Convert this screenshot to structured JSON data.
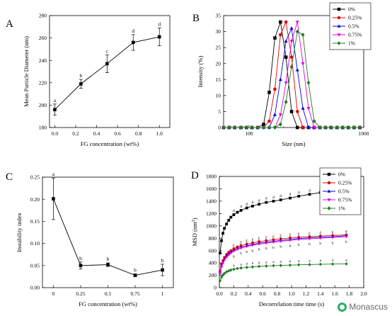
{
  "watermark": {
    "text": "Monascus",
    "icon": "wechat-icon"
  },
  "chart_data": [
    {
      "id": "A",
      "panel_label": "A",
      "type": "line",
      "xlabel": "FG concentration (wt%)",
      "ylabel": "Mean Particle Diameter (nm)",
      "xlim": [
        -0.05,
        1.1
      ],
      "ylim": [
        180,
        280
      ],
      "xticks": [
        0.0,
        0.2,
        0.4,
        0.6,
        0.8,
        1.0
      ],
      "xtick_labels": [
        "0.0",
        "0.2",
        "0.4",
        "0.6",
        "0.8",
        "1.0"
      ],
      "yticks": [
        180,
        200,
        220,
        240,
        260,
        280
      ],
      "ytick_labels": [
        "180",
        "200",
        "220",
        "240",
        "260",
        "280"
      ],
      "series": [
        {
          "x": [
            0,
            0.25,
            0.5,
            0.75,
            1.0
          ],
          "values": [
            196,
            219,
            237,
            256,
            261
          ],
          "errors": [
            5,
            4,
            8,
            7,
            8
          ],
          "labels": [
            "a",
            "b",
            "c",
            "d",
            "d"
          ],
          "marker": "square",
          "color": "#000000"
        }
      ]
    },
    {
      "id": "B",
      "panel_label": "B",
      "type": "line",
      "xlabel": "Size (nm)",
      "ylabel": "Intensity (%)",
      "xscale": "log",
      "xlim": [
        60,
        1000
      ],
      "ylim": [
        0,
        35
      ],
      "xticks": [
        100,
        1000
      ],
      "xtick_labels": [
        "100",
        "1000"
      ],
      "yticks": [
        0,
        5,
        10,
        15,
        20,
        25,
        30,
        35
      ],
      "ytick_labels": [
        "0",
        "5",
        "10",
        "15",
        "20",
        "25",
        "30",
        "35"
      ],
      "legend_position": "top-right",
      "x_common": [
        60,
        67,
        75,
        85,
        95,
        106,
        119,
        134,
        150,
        168,
        188,
        210,
        235,
        264,
        295,
        330,
        370,
        415,
        465,
        520,
        585,
        655,
        735,
        825,
        925
      ],
      "series": [
        {
          "name": "0%",
          "marker": "square",
          "color": "#000000",
          "values": [
            0,
            0,
            0,
            0,
            0,
            0,
            0,
            1,
            11,
            28,
            33,
            22,
            5,
            0,
            0,
            0,
            0,
            0,
            0,
            0,
            0,
            0,
            0,
            0,
            0
          ]
        },
        {
          "name": "0.25%",
          "marker": "circle",
          "color": "#e00000",
          "values": [
            0,
            0,
            0,
            0,
            0,
            0,
            0,
            0,
            2,
            12,
            29,
            33,
            22,
            5,
            0,
            0,
            0,
            0,
            0,
            0,
            0,
            0,
            0,
            0,
            0
          ]
        },
        {
          "name": "0.5%",
          "marker": "triangle-up",
          "color": "#0000e0",
          "values": [
            0,
            0,
            0,
            0,
            0,
            0,
            0,
            0,
            0,
            4,
            15,
            27,
            31,
            18,
            6,
            0,
            0,
            0,
            0,
            0,
            0,
            0,
            0,
            0,
            0
          ]
        },
        {
          "name": "0.75%",
          "marker": "triangle-down",
          "color": "#e000e0",
          "values": [
            0,
            0,
            0,
            0,
            0,
            0,
            0,
            0,
            0,
            0,
            4,
            14,
            27,
            33,
            20,
            6,
            0,
            0,
            0,
            0,
            0,
            0,
            0,
            0,
            0
          ]
        },
        {
          "name": "1%",
          "marker": "diamond",
          "color": "#1e7d1e",
          "values": [
            0,
            0,
            0,
            0,
            0,
            0,
            0,
            0,
            0,
            0,
            1,
            8,
            19,
            30,
            29,
            14,
            2,
            0,
            0,
            0,
            0,
            0,
            0,
            0,
            0
          ]
        }
      ]
    },
    {
      "id": "C",
      "panel_label": "C",
      "type": "line",
      "xlabel": "FG concentration (wt%)",
      "ylabel": "Instability index",
      "xlim": [
        -0.1,
        1.1
      ],
      "ylim": [
        0,
        0.25
      ],
      "xticks": [
        0,
        0.25,
        0.5,
        0.75,
        1
      ],
      "xtick_labels": [
        "0",
        "0.25",
        "0.5",
        "0.75",
        "1"
      ],
      "yticks": [
        0,
        0.05,
        0.1,
        0.15,
        0.2,
        0.25
      ],
      "ytick_labels": [
        "0.00",
        "0.05",
        "0.10",
        "0.15",
        "0.20",
        "0.25"
      ],
      "series": [
        {
          "x": [
            0,
            0.25,
            0.5,
            0.75,
            1
          ],
          "values": [
            0.201,
            0.05,
            0.052,
            0.028,
            0.04
          ],
          "errors": [
            0.047,
            0.008,
            0.004,
            0.003,
            0.013
          ],
          "labels": [
            "a",
            "b",
            "b",
            "b",
            "b"
          ],
          "marker": "square",
          "color": "#000000"
        }
      ]
    },
    {
      "id": "D",
      "panel_label": "D",
      "type": "line",
      "xlabel": "Decorrelation time time (s)",
      "ylabel": "MSD (nm²)",
      "ylabel_main": "MSD (nm",
      "ylabel_sup": "2",
      "ylabel_close": ")",
      "xlim": [
        0,
        2.0
      ],
      "ylim": [
        0,
        1800
      ],
      "xticks": [
        0.0,
        0.2,
        0.4,
        0.6,
        0.8,
        1.0,
        1.2,
        1.4,
        1.6,
        1.8,
        2.0
      ],
      "xtick_labels": [
        "0.0",
        "0.2",
        "0.4",
        "0.6",
        "0.8",
        "1.0",
        "1.2",
        "1.4",
        "1.6",
        "1.8",
        "2.0"
      ],
      "yticks": [
        0,
        200,
        400,
        600,
        800,
        1000,
        1200,
        1400,
        1600,
        1800
      ],
      "ytick_labels": [
        "0",
        "200",
        "400",
        "600",
        "800",
        "1000",
        "1200",
        "1400",
        "1600",
        "1800"
      ],
      "legend_position": "top-right",
      "x_common": [
        0.01,
        0.03,
        0.05,
        0.07,
        0.1,
        0.13,
        0.16,
        0.2,
        0.25,
        0.3,
        0.38,
        0.46,
        0.55,
        0.65,
        0.75,
        0.85,
        0.98,
        1.1,
        1.25,
        1.4,
        1.57,
        1.76
      ],
      "letters_x": [
        0.2,
        0.3,
        0.38,
        0.46,
        0.55,
        0.65,
        0.75,
        0.85,
        0.98,
        1.1,
        1.25,
        1.4,
        1.57,
        1.76
      ],
      "series": [
        {
          "name": "0%",
          "marker": "square",
          "color": "#000000",
          "letter": "d",
          "values": [
            560,
            760,
            880,
            960,
            1030,
            1090,
            1140,
            1180,
            1220,
            1250,
            1290,
            1320,
            1350,
            1380,
            1400,
            1420,
            1450,
            1480,
            1510,
            1540,
            1570,
            1615
          ]
        },
        {
          "name": "0.25%",
          "marker": "circle",
          "color": "#e00000",
          "letter": "c",
          "values": [
            270,
            380,
            440,
            490,
            540,
            575,
            600,
            630,
            660,
            680,
            705,
            725,
            745,
            760,
            775,
            790,
            805,
            815,
            825,
            835,
            845,
            855
          ]
        },
        {
          "name": "0.5%",
          "marker": "triangle-up",
          "color": "#0000e0",
          "letter": "c",
          "values": [
            240,
            350,
            410,
            460,
            510,
            545,
            575,
            605,
            635,
            655,
            680,
            700,
            720,
            735,
            750,
            765,
            780,
            795,
            805,
            815,
            825,
            840
          ]
        },
        {
          "name": "0.75%",
          "marker": "triangle-down",
          "color": "#e000e0",
          "letter": "b",
          "values": [
            230,
            340,
            400,
            450,
            495,
            530,
            560,
            590,
            620,
            640,
            665,
            685,
            705,
            720,
            735,
            750,
            765,
            780,
            790,
            800,
            810,
            825
          ]
        },
        {
          "name": "1%",
          "marker": "diamond",
          "color": "#1e7d1e",
          "letter": "a",
          "values": [
            110,
            170,
            205,
            230,
            255,
            272,
            285,
            298,
            310,
            318,
            328,
            336,
            344,
            350,
            356,
            360,
            365,
            370,
            374,
            378,
            382,
            385
          ]
        }
      ]
    }
  ]
}
